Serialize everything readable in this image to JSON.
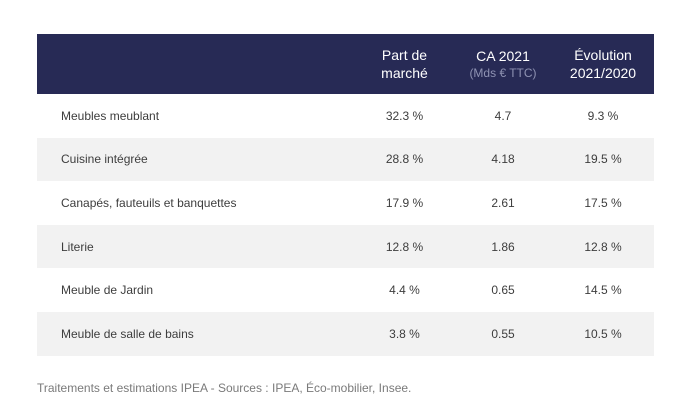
{
  "header": {
    "col_label": "",
    "col_part_line1": "Part de",
    "col_part_line2": "marché",
    "col_ca": "CA 2021",
    "col_ca_sub": "(Mds € TTC)",
    "col_evo_line1": "Évolution",
    "col_evo_line2": "2021/2020"
  },
  "rows": [
    {
      "label": "Meubles meublant",
      "part": "32.3 %",
      "ca": "4.7",
      "evo": "9.3 %"
    },
    {
      "label": "Cuisine intégrée",
      "part": "28.8 %",
      "ca": "4.18",
      "evo": "19.5 %"
    },
    {
      "label": "Canapés, fauteuils et banquettes",
      "part": "17.9 %",
      "ca": "2.61",
      "evo": "17.5 %"
    },
    {
      "label": "Literie",
      "part": "12.8 %",
      "ca": "1.86",
      "evo": "12.8 %"
    },
    {
      "label": "Meuble de Jardin",
      "part": "4.4 %",
      "ca": "0.65",
      "evo": "14.5 %"
    },
    {
      "label": "Meuble de salle de bains",
      "part": "3.8 %",
      "ca": "0.55",
      "evo": "10.5 %"
    }
  ],
  "footnote": "Traitements et estimations IPEA - Sources : IPEA, Éco-mobilier, Insee.",
  "colors": {
    "header_bg": "#272a55",
    "row_alt_bg": "#f2f2f2"
  },
  "chart_data": {
    "type": "table",
    "columns": [
      "",
      "Part de marché",
      "CA 2021 (Mds € TTC)",
      "Évolution 2021/2020"
    ],
    "rows": [
      [
        "Meubles meublant",
        "32.3 %",
        "4.7",
        "9.3 %"
      ],
      [
        "Cuisine intégrée",
        "28.8 %",
        "4.18",
        "19.5 %"
      ],
      [
        "Canapés, fauteuils et banquettes",
        "17.9 %",
        "2.61",
        "17.5 %"
      ],
      [
        "Literie",
        "12.8 %",
        "1.86",
        "12.8 %"
      ],
      [
        "Meuble de Jardin",
        "4.4 %",
        "0.65",
        "14.5 %"
      ],
      [
        "Meuble de salle de bains",
        "3.8 %",
        "0.55",
        "10.5 %"
      ]
    ]
  }
}
